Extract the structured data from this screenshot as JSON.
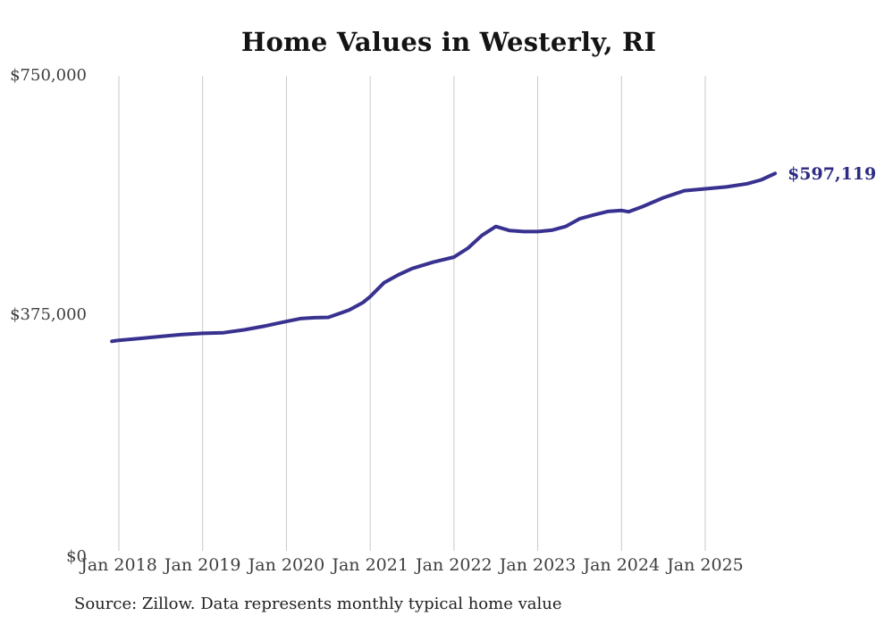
{
  "title": "Home Values in Westerly, RI",
  "source_note": "Source: Zillow. Data represents monthly typical home value",
  "end_label": "$597,119",
  "colors": {
    "line": "#38318f",
    "end_label": "#2d2b83",
    "grid": "#c9c9c9",
    "title_text": "#141414",
    "axis_text": "#3d3d3d",
    "source_text": "#1f1f1f",
    "background": "#ffffff"
  },
  "chart_data": {
    "type": "line",
    "title": "Home Values in Westerly, RI",
    "xlabel": "",
    "ylabel": "",
    "unit": "USD",
    "grid": "vertical-only",
    "legend": "none",
    "y_axis": {
      "range": [
        0,
        750000
      ],
      "ticks": [
        {
          "label": "$0",
          "value": 0
        },
        {
          "label": "$375,000",
          "value": 375000
        },
        {
          "label": "$750,000",
          "value": 750000
        }
      ]
    },
    "x_axis": {
      "ticks": [
        {
          "label": "Jan 2018",
          "date": "2018-01"
        },
        {
          "label": "Jan 2019",
          "date": "2019-01"
        },
        {
          "label": "Jan 2020",
          "date": "2020-01"
        },
        {
          "label": "Jan 2021",
          "date": "2021-01"
        },
        {
          "label": "Jan 2022",
          "date": "2022-01"
        },
        {
          "label": "Jan 2023",
          "date": "2023-01"
        },
        {
          "label": "Jan 2024",
          "date": "2024-01"
        },
        {
          "label": "Jan 2025",
          "date": "2025-01"
        }
      ]
    },
    "series": [
      {
        "name": "Monthly typical home value",
        "latest_value": 597119,
        "latest_label": "$597,119",
        "points": [
          {
            "date": "2017-12",
            "value": 334000
          },
          {
            "date": "2018-01",
            "value": 335500
          },
          {
            "date": "2018-04",
            "value": 338500
          },
          {
            "date": "2018-07",
            "value": 341500
          },
          {
            "date": "2018-10",
            "value": 344500
          },
          {
            "date": "2019-01",
            "value": 346500
          },
          {
            "date": "2019-04",
            "value": 347500
          },
          {
            "date": "2019-07",
            "value": 352000
          },
          {
            "date": "2019-10",
            "value": 358000
          },
          {
            "date": "2020-01",
            "value": 365000
          },
          {
            "date": "2020-03",
            "value": 369500
          },
          {
            "date": "2020-05",
            "value": 371000
          },
          {
            "date": "2020-07",
            "value": 371500
          },
          {
            "date": "2020-10",
            "value": 383000
          },
          {
            "date": "2020-12",
            "value": 395000
          },
          {
            "date": "2021-01",
            "value": 404000
          },
          {
            "date": "2021-03",
            "value": 426000
          },
          {
            "date": "2021-05",
            "value": 438000
          },
          {
            "date": "2021-07",
            "value": 448000
          },
          {
            "date": "2021-10",
            "value": 458000
          },
          {
            "date": "2022-01",
            "value": 466000
          },
          {
            "date": "2022-03",
            "value": 480000
          },
          {
            "date": "2022-05",
            "value": 500000
          },
          {
            "date": "2022-07",
            "value": 514000
          },
          {
            "date": "2022-09",
            "value": 507500
          },
          {
            "date": "2022-11",
            "value": 506000
          },
          {
            "date": "2023-01",
            "value": 506000
          },
          {
            "date": "2023-03",
            "value": 508000
          },
          {
            "date": "2023-05",
            "value": 514000
          },
          {
            "date": "2023-07",
            "value": 526000
          },
          {
            "date": "2023-09",
            "value": 532000
          },
          {
            "date": "2023-11",
            "value": 537500
          },
          {
            "date": "2024-01",
            "value": 539000
          },
          {
            "date": "2024-02",
            "value": 537000
          },
          {
            "date": "2024-04",
            "value": 545000
          },
          {
            "date": "2024-07",
            "value": 559000
          },
          {
            "date": "2024-10",
            "value": 570000
          },
          {
            "date": "2025-01",
            "value": 573000
          },
          {
            "date": "2025-04",
            "value": 576000
          },
          {
            "date": "2025-07",
            "value": 581000
          },
          {
            "date": "2025-09",
            "value": 587000
          },
          {
            "date": "2025-11",
            "value": 597119
          }
        ]
      }
    ]
  }
}
